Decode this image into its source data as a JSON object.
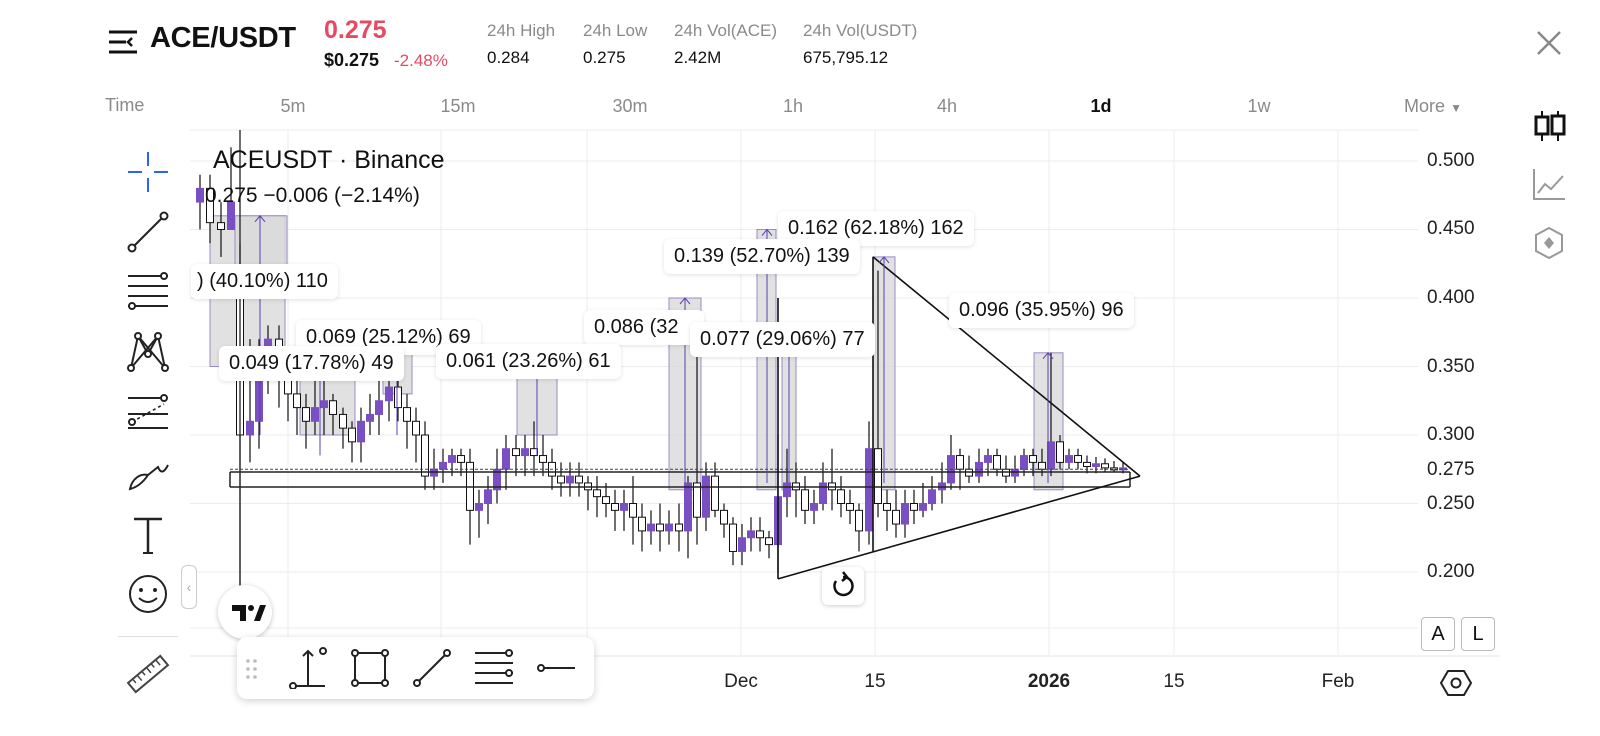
{
  "header": {
    "pair": "ACE/USDT",
    "last_price": "0.275",
    "usd_price": "$0.275",
    "change_pct": "-2.48%",
    "stats": [
      {
        "label": "24h High",
        "value": "0.284"
      },
      {
        "label": "24h Low",
        "value": "0.275"
      },
      {
        "label": "24h Vol(ACE)",
        "value": "2.42M"
      },
      {
        "label": "24h Vol(USDT)",
        "value": "675,795.12"
      }
    ]
  },
  "timeframes": {
    "label": "Time",
    "items": [
      "5m",
      "15m",
      "30m",
      "1h",
      "4h",
      "1d",
      "1w"
    ],
    "active": "1d",
    "more": "More"
  },
  "chart": {
    "legend_title": "ACEUSDT · Binance",
    "legend_ohlc": "0.275  −0.006 (−2.14%)",
    "y_ticks": [
      "0.500",
      "0.450",
      "0.400",
      "0.350",
      "0.300",
      "0.275",
      "0.250",
      "0.200"
    ],
    "x_ticks": [
      "Dec",
      "15",
      "2026",
      "15",
      "Feb"
    ],
    "measurements": [
      "0.162 (62.18%) 162",
      "0.139 (52.70%) 139",
      ") (40.10%) 110",
      "0.096 (35.95%) 96",
      "0.086 (32",
      "0.069 (25.12%) 69",
      "0.077 (29.06%) 77",
      "0.049 (17.78%) 49",
      "0.061 (23.26%) 61"
    ],
    "scale_buttons": [
      "A",
      "L"
    ]
  },
  "colors": {
    "accent_red": "#e54a62",
    "bull_candle": "#7b4fc4",
    "tool_blue": "#2962ff"
  },
  "icons": {
    "left_tools": [
      "crosshair-icon",
      "trend-line-icon",
      "fib-icon",
      "pattern-icon",
      "prediction-icon",
      "brush-icon",
      "text-icon",
      "emoji-icon",
      "ruler-icon"
    ],
    "right_tools": [
      "candles-icon",
      "line-chart-icon",
      "indicator-icon"
    ]
  }
}
